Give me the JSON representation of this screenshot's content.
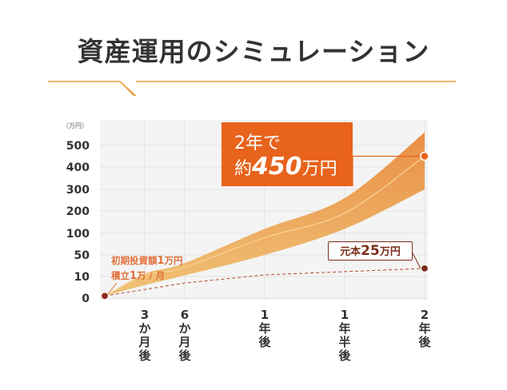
{
  "title": "資産運用のシミュレーション",
  "colors": {
    "accent": "#e8631c",
    "band_top": "#e8893c",
    "band_bottom": "#f0c070",
    "principal": "#7a2e1a",
    "rule": "#e8a040"
  },
  "callout": {
    "line1": "2年で",
    "prefix": "約",
    "amount": "450",
    "suffix": "万円"
  },
  "principal_label": {
    "prefix": "元本",
    "amount": "25",
    "suffix": "万円"
  },
  "initial_label": {
    "line1_prefix": "初期投資額",
    "line1_amount": "1",
    "line1_suffix": "万円",
    "line2_prefix": "積立",
    "line2_amount": "1",
    "line2_suffix": "万 / 月"
  },
  "chart_data": {
    "type": "area",
    "title": "資産運用のシミュレーション",
    "y_unit_label": "（万円）",
    "y_ticks": [
      "0",
      "10",
      "50",
      "100",
      "200",
      "300",
      "400",
      "500"
    ],
    "x_ticks": [
      [
        "3",
        "か",
        "月",
        "後"
      ],
      [
        "6",
        "か",
        "月",
        "後"
      ],
      [
        "1",
        "年",
        "後"
      ],
      [
        "1",
        "年",
        "半",
        "後"
      ],
      [
        "2",
        "年",
        "後"
      ]
    ],
    "x_months": [
      0,
      3,
      6,
      12,
      18,
      24
    ],
    "series": [
      {
        "name": "upper",
        "values": [
          1,
          15,
          35,
          120,
          260,
          560
        ]
      },
      {
        "name": "expected",
        "values": [
          1,
          12,
          27,
          90,
          190,
          450
        ]
      },
      {
        "name": "lower",
        "values": [
          1,
          6,
          12,
          50,
          120,
          300
        ]
      },
      {
        "name": "元本",
        "values": [
          1,
          4,
          7,
          13,
          19,
          25
        ]
      }
    ],
    "annotations": [
      {
        "text": "2年で約450万円",
        "x_month": 24,
        "y": 450
      },
      {
        "text": "元本25万円",
        "x_month": 24,
        "y": 25
      },
      {
        "text": "初期投資額1万円 積立1万 / 月",
        "x_month": 0,
        "y": 1
      }
    ],
    "grid": true,
    "scale": "non-linear"
  }
}
